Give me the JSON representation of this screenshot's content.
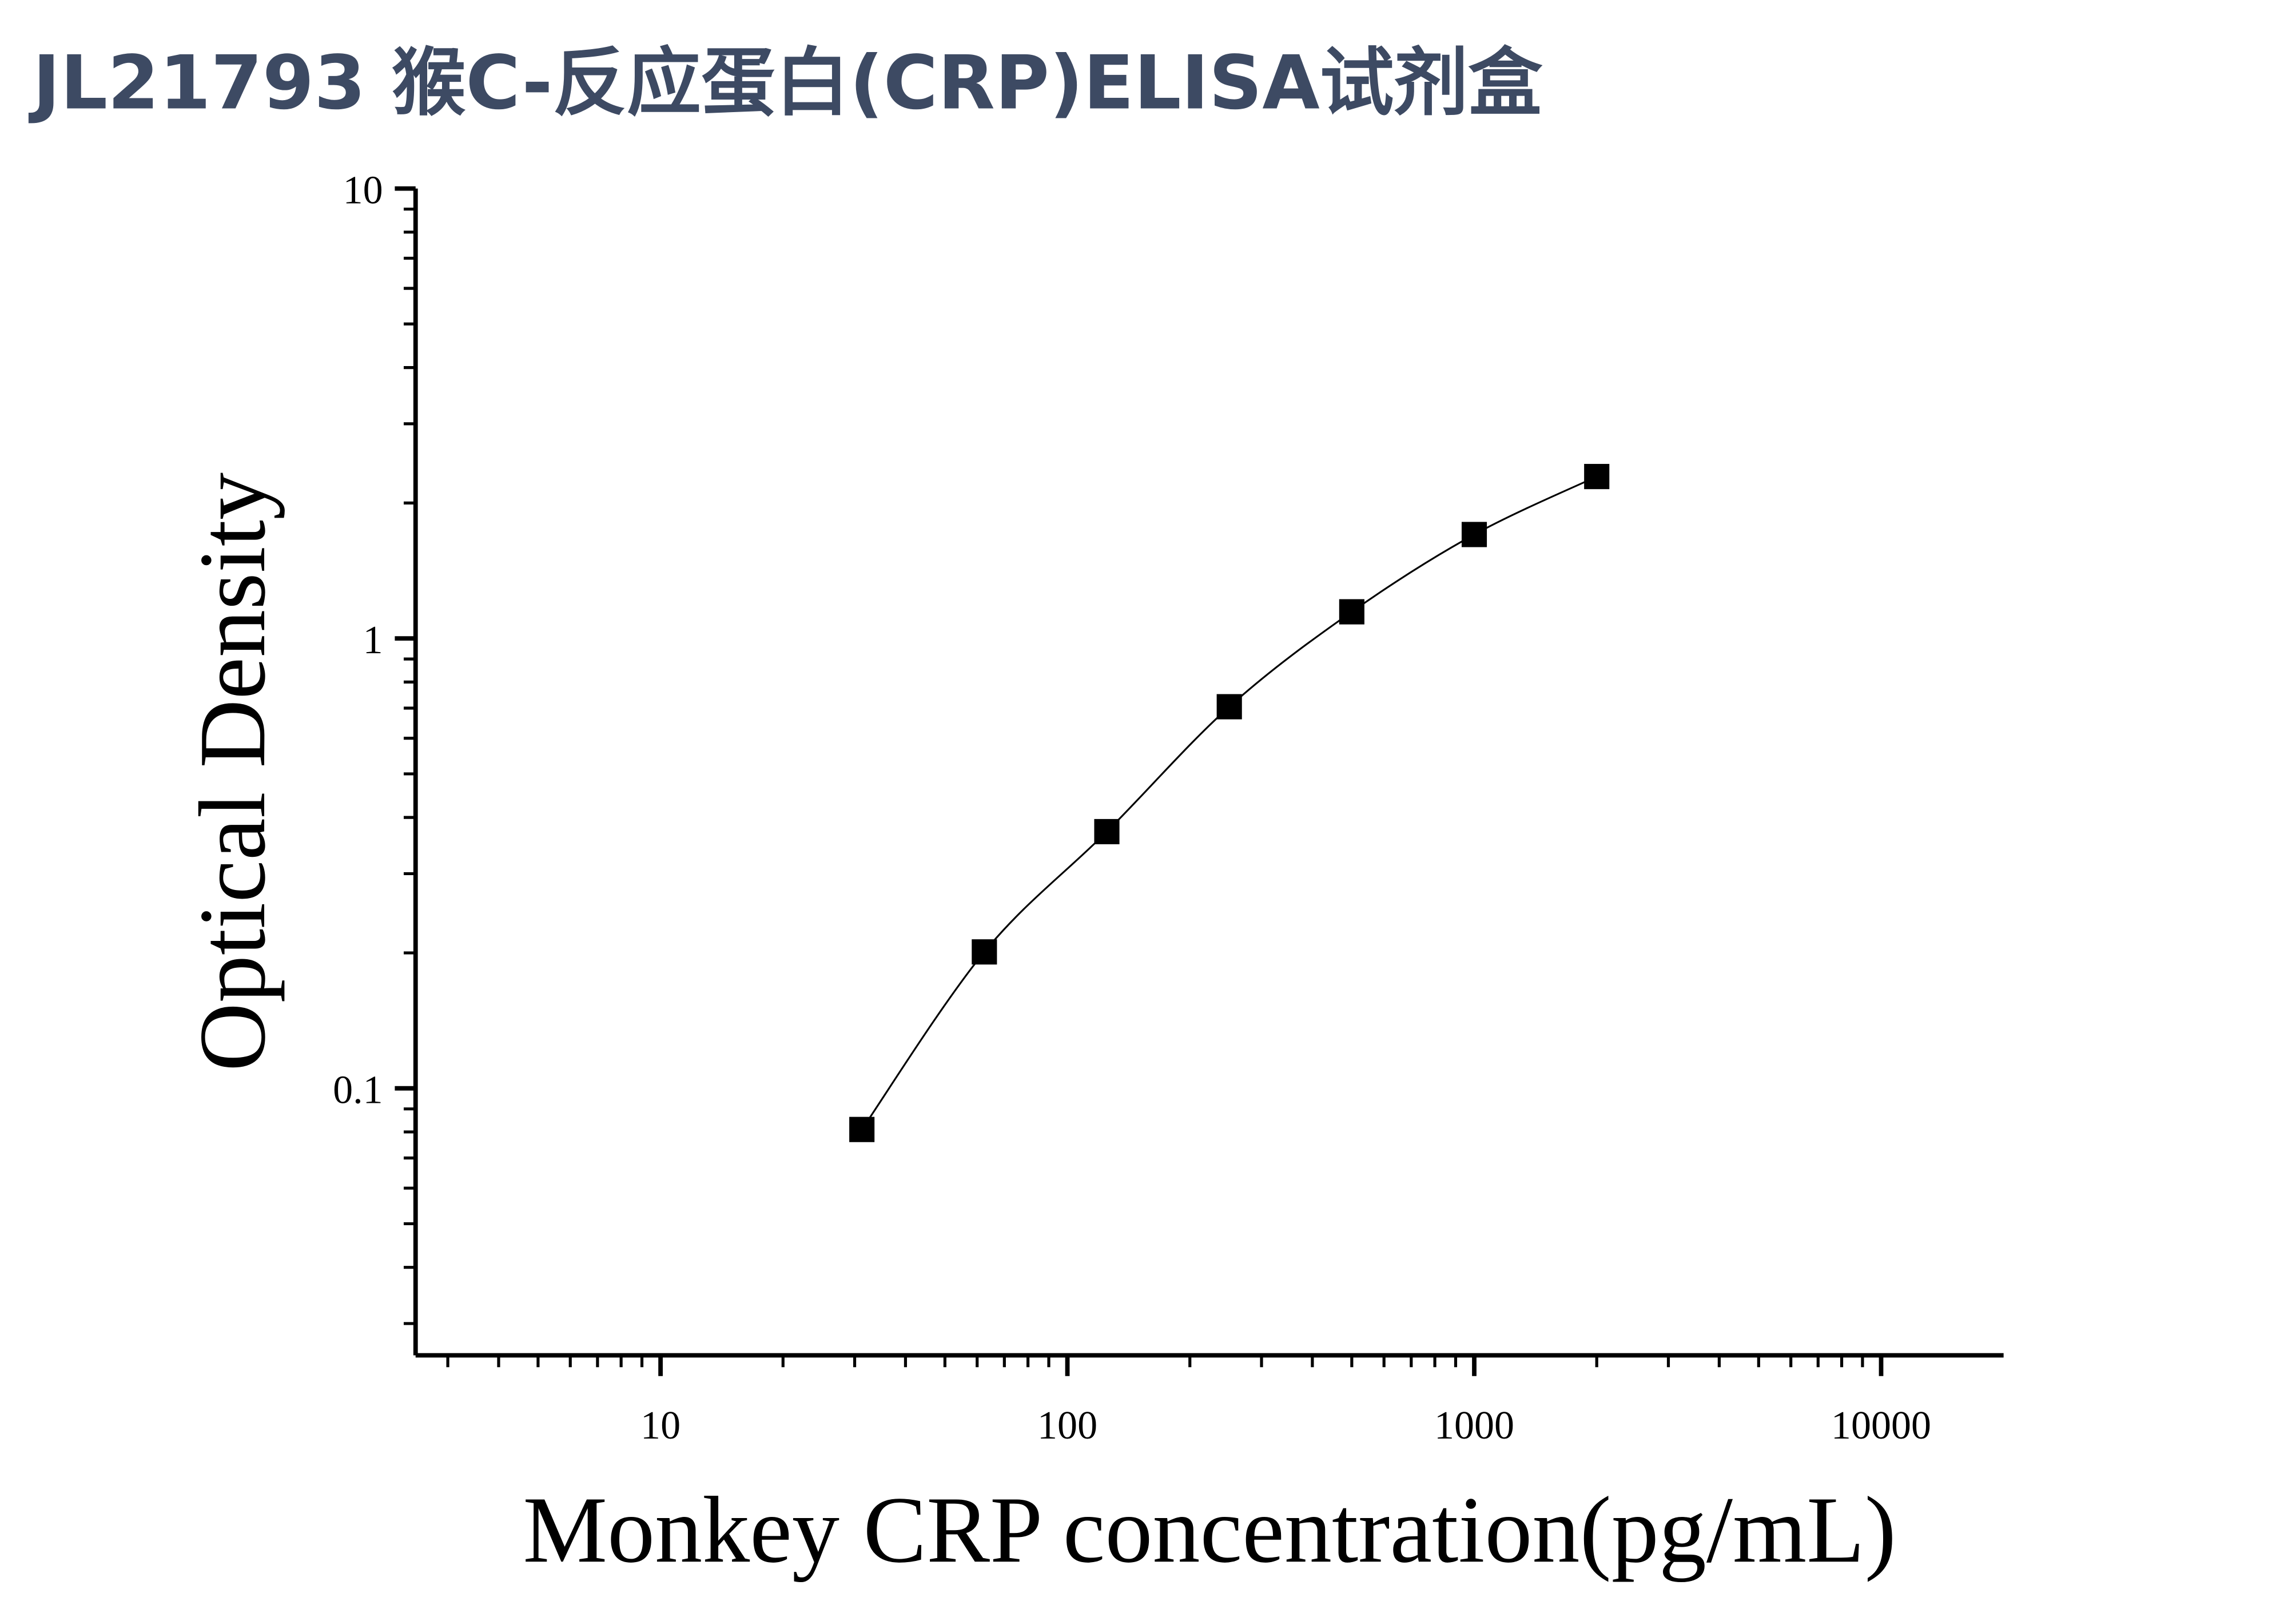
{
  "chart_data": {
    "type": "scatter",
    "title": "JL21793 猴C-反应蛋白(CRP)ELISA试剂盒",
    "x_label": "Monkey CRP concentration(pg/mL)",
    "y_label": "Optical Density",
    "log_x": true,
    "log_y": true,
    "xlim": [
      2.5,
      20000
    ],
    "ylim": [
      0.0255,
      10
    ],
    "xticks": [
      10,
      100,
      1000,
      10000
    ],
    "yticks": [
      0.1,
      1,
      10
    ],
    "series": [
      {
        "color": "#000000",
        "x": [
          31.25,
          62.5,
          125,
          250,
          500,
          1000,
          2000
        ],
        "values": [
          0.081,
          0.201,
          0.372,
          0.705,
          1.146,
          1.702,
          2.29
        ]
      }
    ]
  }
}
